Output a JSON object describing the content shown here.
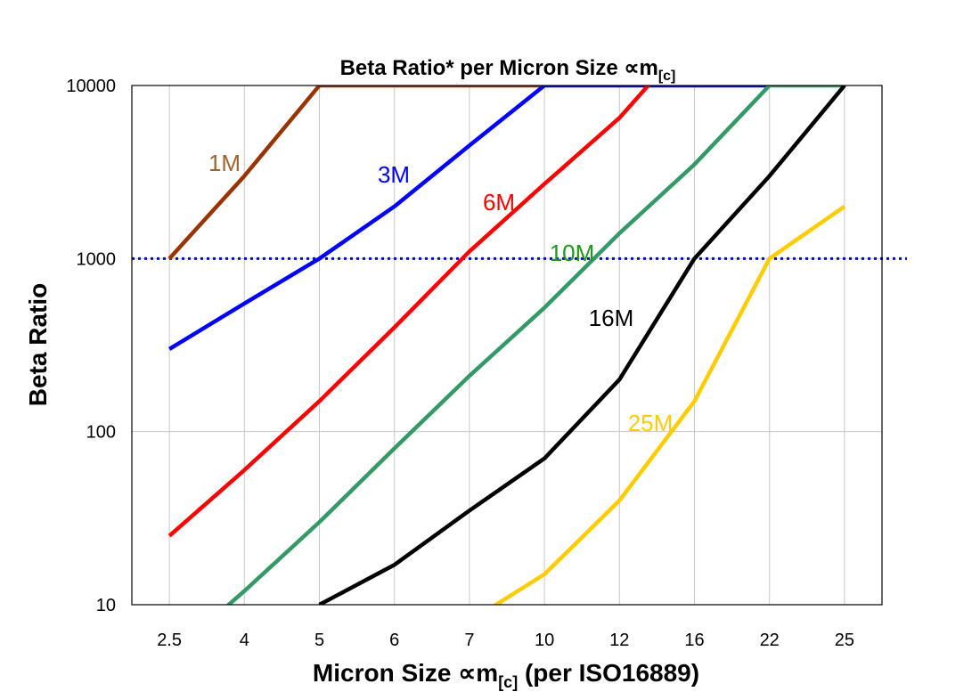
{
  "chart_data": {
    "type": "line",
    "title": "Beta Ratio* per Micron Size ∝m",
    "title_subscript": "[c]",
    "xlabel": "Micron Size ∝m",
    "xlabel_subscript": "[c]",
    "xlabel_suffix": " (per ISO16889)",
    "ylabel": "Beta Ratio",
    "y_scale": "log",
    "ylim": [
      10,
      10000
    ],
    "y_ticks": [
      "10",
      "100",
      "1000",
      "10000"
    ],
    "categories": [
      "2.5",
      "4",
      "5",
      "6",
      "7",
      "10",
      "12",
      "16",
      "22",
      "25"
    ],
    "grid": true,
    "reference_line": {
      "y": 1000,
      "color": "#0000ff",
      "style": "dotted"
    },
    "series": [
      {
        "name": "1M",
        "color": "#993300",
        "label_color": "#a0632f",
        "values": [
          1000,
          3000,
          10000,
          10000,
          10000,
          10000,
          null,
          null,
          null,
          null
        ]
      },
      {
        "name": "3M",
        "color": "#0000ff",
        "label_color": "#0000ff",
        "values": [
          300,
          550,
          1000,
          2000,
          4500,
          10000,
          10000,
          10000,
          10000,
          null
        ]
      },
      {
        "name": "6M",
        "color": "#ff0000",
        "label_color": "#ff0000",
        "values": [
          25,
          60,
          150,
          400,
          1100,
          2700,
          6500,
          20000,
          null,
          null
        ]
      },
      {
        "name": "10M",
        "color": "#339966",
        "label_color": "#1b9a1b",
        "values": [
          5,
          12,
          30,
          80,
          210,
          520,
          1400,
          3500,
          10000,
          10000
        ]
      },
      {
        "name": "16M",
        "color": "#000000",
        "label_color": "#000000",
        "values": [
          null,
          null,
          10,
          17,
          35,
          70,
          200,
          1000,
          3000,
          10000
        ]
      },
      {
        "name": "25M",
        "color": "#ffcc00",
        "label_color": "#ffcc00",
        "values": [
          null,
          null,
          null,
          null,
          8,
          15,
          40,
          150,
          1000,
          2000
        ]
      }
    ]
  }
}
